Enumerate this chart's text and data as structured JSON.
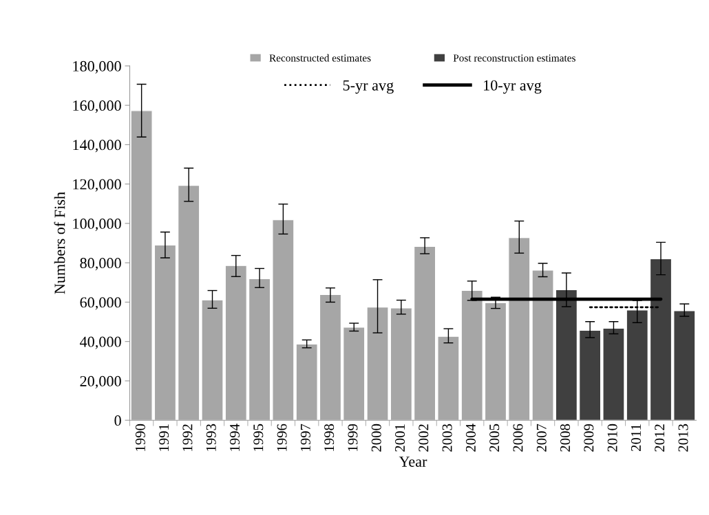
{
  "chart_data": {
    "type": "bar",
    "xlabel": "Year",
    "ylabel": "Numbers of Fish",
    "categories": [
      "1990",
      "1991",
      "1992",
      "1993",
      "1994",
      "1995",
      "1996",
      "1997",
      "1998",
      "1999",
      "2000",
      "2001",
      "2002",
      "2003",
      "2004",
      "2005",
      "2006",
      "2007",
      "2008",
      "2009",
      "2010",
      "2011",
      "2012",
      "2013"
    ],
    "series": [
      {
        "name": "Reconstructed estimates",
        "color": "#a6a6a6",
        "values": [
          157300,
          89000,
          119300,
          61100,
          78600,
          71900,
          101800,
          38700,
          63800,
          47200,
          57500,
          57000,
          88300,
          42600,
          65900,
          59700,
          92700,
          76200,
          null,
          null,
          null,
          null,
          null,
          null
        ],
        "errors": [
          [
            143900,
            170700
          ],
          [
            82500,
            95600
          ],
          [
            111200,
            128100
          ],
          [
            56900,
            65900
          ],
          [
            73000,
            83700
          ],
          [
            67400,
            77100
          ],
          [
            94600,
            109800
          ],
          [
            36800,
            40800
          ],
          [
            60000,
            67200
          ],
          [
            45300,
            49300
          ],
          [
            44400,
            71400
          ],
          [
            53900,
            61000
          ],
          [
            84600,
            92700
          ],
          [
            39300,
            46500
          ],
          [
            60900,
            70700
          ],
          [
            56800,
            62500
          ],
          [
            84900,
            101200
          ],
          [
            72900,
            79700
          ],
          null,
          null,
          null,
          null,
          null,
          null
        ]
      },
      {
        "name": "Post reconstruction estimates",
        "color": "#404040",
        "values": [
          null,
          null,
          null,
          null,
          null,
          null,
          null,
          null,
          null,
          null,
          null,
          null,
          null,
          null,
          null,
          null,
          null,
          null,
          66300,
          45700,
          46700,
          56000,
          82000,
          55600
        ],
        "errors": [
          null,
          null,
          null,
          null,
          null,
          null,
          null,
          null,
          null,
          null,
          null,
          null,
          null,
          null,
          null,
          null,
          null,
          null,
          [
            57700,
            74800
          ],
          [
            42000,
            50100
          ],
          [
            43900,
            50100
          ],
          [
            49600,
            60800
          ],
          [
            73900,
            90400
          ],
          [
            52800,
            59100
          ]
        ]
      },
      {
        "name": "5-yr avg",
        "type": "line",
        "line_style": "dotted",
        "color": "#000000",
        "values": [
          null,
          null,
          null,
          null,
          null,
          null,
          null,
          null,
          null,
          null,
          null,
          null,
          null,
          null,
          null,
          null,
          null,
          null,
          null,
          57400,
          57400,
          57400,
          57400,
          null
        ]
      },
      {
        "name": "10-yr avg",
        "type": "line",
        "line_style": "solid",
        "color": "#000000",
        "values": [
          null,
          null,
          null,
          null,
          null,
          null,
          null,
          null,
          null,
          null,
          null,
          null,
          null,
          null,
          61500,
          61500,
          61500,
          61500,
          61500,
          61500,
          61500,
          61500,
          61500,
          null
        ]
      }
    ],
    "ylim": [
      0,
      180000
    ],
    "yticks": [
      0,
      {
        "value": 20000,
        "label": "20,000"
      },
      {
        "value": 40000,
        "label": "40,000"
      },
      {
        "value": 60000,
        "label": "60,000"
      },
      {
        "value": 80000,
        "label": "80,000"
      },
      {
        "value": 100000,
        "label": "100,000"
      },
      {
        "value": 120000,
        "label": "120,000"
      },
      {
        "value": 140000,
        "label": "140,000"
      },
      {
        "value": 160000,
        "label": "160,000"
      },
      {
        "value": 180000,
        "label": "180,000"
      }
    ],
    "grid": false,
    "legend": "top"
  }
}
